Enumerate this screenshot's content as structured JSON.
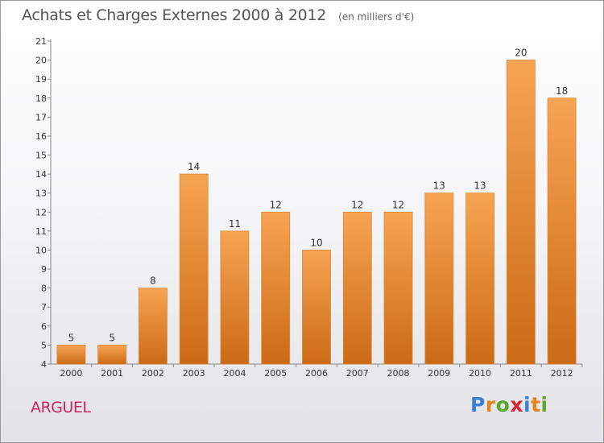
{
  "chart_data": {
    "type": "bar",
    "title": "Achats et Charges Externes 2000 à 2012",
    "unit": "(en milliers d'€)",
    "categories": [
      "2000",
      "2001",
      "2002",
      "2003",
      "2004",
      "2005",
      "2006",
      "2007",
      "2008",
      "2009",
      "2010",
      "2011",
      "2012"
    ],
    "values": [
      5,
      5,
      8,
      14,
      11,
      12,
      10,
      12,
      12,
      13,
      13,
      20,
      18
    ],
    "ylim": [
      4,
      21
    ],
    "yticks": [
      4,
      5,
      6,
      7,
      8,
      9,
      10,
      11,
      12,
      13,
      14,
      15,
      16,
      17,
      18,
      19,
      20,
      21
    ],
    "grid": false,
    "bar_color_top": "#f7a452",
    "bar_color_bottom": "#cc6a15",
    "xlabel": "",
    "ylabel": ""
  },
  "place_name": "ARGUEL",
  "logo": {
    "text": "Proxiti",
    "letters": [
      {
        "ch": "P",
        "color": "#3a7fd0"
      },
      {
        "ch": "r",
        "color": "#e8801c"
      },
      {
        "ch": "o",
        "color": "#5aa62e"
      },
      {
        "ch": "x",
        "color": "#d8262e"
      },
      {
        "ch": "i",
        "color": "#3a7fd0"
      },
      {
        "ch": "t",
        "color": "#e8801c"
      },
      {
        "ch": "i",
        "color": "#5aa62e"
      }
    ]
  }
}
